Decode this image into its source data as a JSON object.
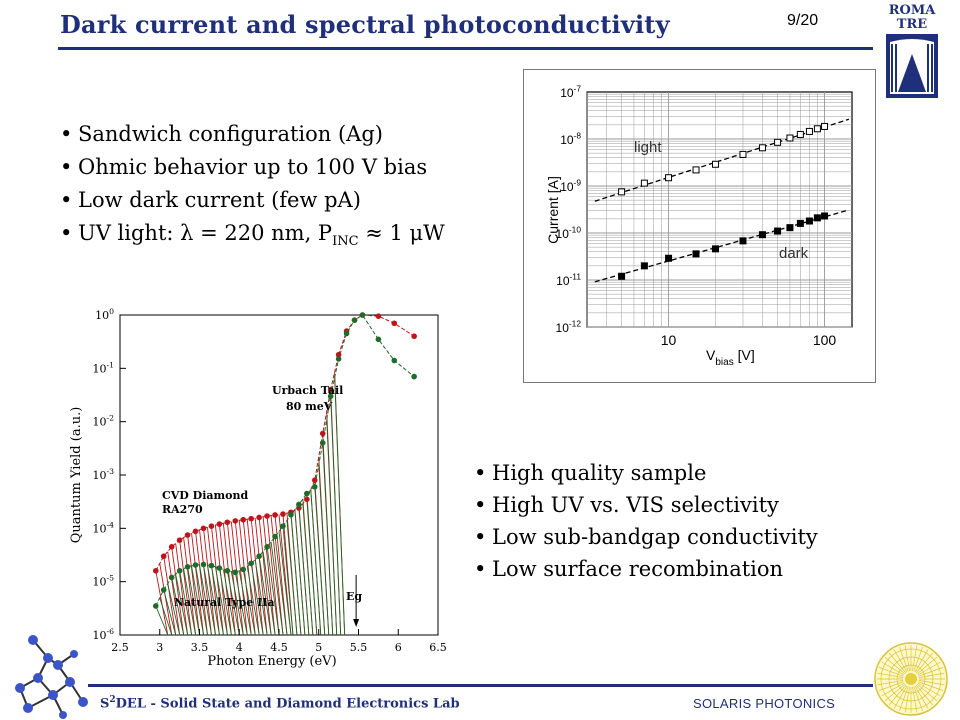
{
  "header": {
    "title": "Dark current and spectral photoconductivity",
    "page_number": "9/20",
    "logo_line1": "ROMA",
    "logo_line2": "TRE"
  },
  "bullets_top": [
    "Sandwich configuration (Ag)",
    "Ohmic behavior up to 100 V bias",
    "Low dark current (few pA)"
  ],
  "bullet_uv": {
    "prefix": "UV light: λ = 220 nm, P",
    "sub": "INC",
    "suffix": " ≈ 1 μW"
  },
  "bullets_bottom": [
    "High quality sample",
    "High UV vs. VIS selectivity",
    "Low sub-bandgap conductivity",
    "Low surface recombination"
  ],
  "footer": {
    "left_prefix": "S",
    "left_sup": "2",
    "left_suffix": "DEL - Solid State and Diamond Electronics Lab",
    "right": "SOLARIS PHOTONICS"
  },
  "colors": {
    "title": "#1f2f7a",
    "cvd_series": "#c0141a",
    "natural_series": "#1f6b2a"
  },
  "chart_data": [
    {
      "type": "scatter",
      "xlabel_main": "V",
      "xlabel_sub": "bias",
      "xlabel_unit": " [V]",
      "ylabel": "Current [A]",
      "x_scale": "log",
      "y_scale": "log",
      "xlim": [
        3,
        150
      ],
      "ylim": [
        1e-12,
        1e-07
      ],
      "x_tick_labels": [
        "10",
        "100"
      ],
      "y_tick_labels": [
        {
          "base": "10",
          "exp": "-7"
        },
        {
          "base": "10",
          "exp": "-8"
        },
        {
          "base": "10",
          "exp": "-9"
        },
        {
          "base": "10",
          "exp": "-10"
        },
        {
          "base": "10",
          "exp": "-11"
        },
        {
          "base": "10",
          "exp": "-12"
        }
      ],
      "grid": true,
      "series": [
        {
          "name": "light",
          "marker": "open-square",
          "x": [
            5,
            7,
            10,
            15,
            20,
            30,
            40,
            50,
            60,
            70,
            80,
            90,
            100
          ],
          "y": [
            7.5e-10,
            1.15e-09,
            1.5e-09,
            2.2e-09,
            2.9e-09,
            4.7e-09,
            6.5e-09,
            8.5e-09,
            1.05e-08,
            1.25e-08,
            1.45e-08,
            1.65e-08,
            1.85e-08
          ]
        },
        {
          "name": "dark",
          "marker": "filled-square",
          "x": [
            5,
            7,
            10,
            15,
            20,
            30,
            40,
            50,
            60,
            70,
            80,
            90,
            100
          ],
          "y": [
            1.2e-11,
            2e-11,
            2.9e-11,
            3.6e-11,
            4.6e-11,
            6.8e-11,
            9.2e-11,
            1.1e-10,
            1.3e-10,
            1.6e-10,
            1.8e-10,
            2.1e-10,
            2.3e-10
          ]
        }
      ]
    },
    {
      "type": "line",
      "xlabel": "Photon Energy (eV)",
      "ylabel": "Quantum Yield (a.u.)",
      "y_scale": "log",
      "xlim": [
        2.5,
        6.5
      ],
      "ylim": [
        1e-06,
        1
      ],
      "x_tick_labels": [
        "2.5",
        "3",
        "3.5",
        "4",
        "4.5",
        "5",
        "5.5",
        "6",
        "6.5"
      ],
      "y_tick_labels": [
        {
          "base": "10",
          "exp": "0"
        },
        {
          "base": "10",
          "exp": "-1"
        },
        {
          "base": "10",
          "exp": "-2"
        },
        {
          "base": "10",
          "exp": "-3"
        },
        {
          "base": "10",
          "exp": "-4"
        },
        {
          "base": "10",
          "exp": "-5"
        },
        {
          "base": "10",
          "exp": "-6"
        }
      ],
      "annotations": {
        "urbach_line1": "Urbach Tail",
        "urbach_line2": "80 meV",
        "cvd_line1": "CVD Diamond",
        "cvd_line2": "RA270",
        "natural": "Natural Type IIa",
        "eg": "Eg",
        "eg_x": 5.47
      },
      "series": [
        {
          "name": "CVD Diamond RA270",
          "color": "#c0141a",
          "x": [
            2.95,
            3.05,
            3.15,
            3.25,
            3.35,
            3.45,
            3.55,
            3.65,
            3.75,
            3.85,
            3.95,
            4.05,
            4.15,
            4.25,
            4.35,
            4.45,
            4.55,
            4.65,
            4.75,
            4.85,
            4.95,
            5.05,
            5.15,
            5.25,
            5.35,
            5.45,
            5.55,
            5.75,
            5.95,
            6.2
          ],
          "y": [
            1.6e-05,
            3e-05,
            4.5e-05,
            6e-05,
            7.5e-05,
            8.8e-05,
            0.0001,
            0.00011,
            0.00012,
            0.00013,
            0.000138,
            0.000145,
            0.000152,
            0.00016,
            0.00017,
            0.000178,
            0.000185,
            0.0002,
            0.00024,
            0.00035,
            0.0008,
            0.006,
            0.04,
            0.18,
            0.5,
            0.8,
            1.0,
            0.95,
            0.7,
            0.4
          ]
        },
        {
          "name": "Natural Type IIa",
          "color": "#1f6b2a",
          "x": [
            2.95,
            3.05,
            3.15,
            3.25,
            3.35,
            3.45,
            3.55,
            3.65,
            3.75,
            3.85,
            3.95,
            4.05,
            4.15,
            4.25,
            4.35,
            4.45,
            4.55,
            4.65,
            4.75,
            4.85,
            4.95,
            5.05,
            5.15,
            5.25,
            5.35,
            5.45,
            5.55,
            5.75,
            5.95,
            6.2
          ],
          "y": [
            3.5e-06,
            7e-06,
            1.2e-05,
            1.6e-05,
            1.9e-05,
            2.05e-05,
            2.1e-05,
            2e-05,
            1.8e-05,
            1.6e-05,
            1.5e-05,
            1.7e-05,
            2.2e-05,
            3e-05,
            4.5e-05,
            7e-05,
            0.00011,
            0.00018,
            0.00028,
            0.00045,
            0.0006,
            0.004,
            0.03,
            0.15,
            0.45,
            0.8,
            1.0,
            0.35,
            0.14,
            0.07
          ]
        }
      ]
    }
  ]
}
